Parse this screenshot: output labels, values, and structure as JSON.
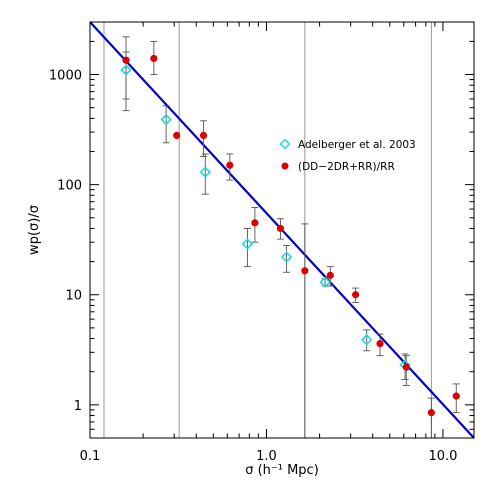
{
  "chart_data": {
    "type": "scatter",
    "xlabel": "σ (h⁻¹ Mpc)",
    "ylabel": "wp(σ)/σ",
    "xscale": "log",
    "yscale": "log",
    "xlim": [
      0.1,
      15
    ],
    "ylim": [
      0.5,
      3000
    ],
    "x_ticks": [
      {
        "value": 0.1,
        "label": "0.1"
      },
      {
        "value": 1,
        "label": "1.0"
      },
      {
        "value": 10,
        "label": "10.0"
      }
    ],
    "y_ticks": [
      {
        "value": 1,
        "label": "1"
      },
      {
        "value": 10,
        "label": "10"
      },
      {
        "value": 100,
        "label": "100"
      },
      {
        "value": 1000,
        "label": "1000"
      }
    ],
    "grid": false,
    "legend_position": "upper-right",
    "colors": {
      "adelberger": "#22d8d8",
      "ddrr": "#dd0000",
      "fit": "#0000cc",
      "errorbar": "#555555",
      "vline": "#999999"
    },
    "series": [
      {
        "name": "Adelberger et al. 2003",
        "marker": "diamond-open",
        "points": [
          {
            "x": 0.16,
            "y": 1100,
            "ylo": 470,
            "yhi": 1600
          },
          {
            "x": 0.27,
            "y": 390,
            "ylo": 240,
            "yhi": 520
          },
          {
            "x": 0.45,
            "y": 130,
            "ylo": 82,
            "yhi": 190
          },
          {
            "x": 0.78,
            "y": 29,
            "ylo": 18,
            "yhi": 40
          },
          {
            "x": 1.3,
            "y": 22,
            "ylo": 16,
            "yhi": 28
          },
          {
            "x": 2.15,
            "y": 13,
            "ylo": 12,
            "yhi": 14
          },
          {
            "x": 3.7,
            "y": 3.9,
            "ylo": 3.1,
            "yhi": 4.8
          },
          {
            "x": 6.1,
            "y": 2.3,
            "ylo": 1.7,
            "yhi": 2.9
          }
        ]
      },
      {
        "name": "(DD−2DR+RR)/RR",
        "marker": "circle-filled",
        "points": [
          {
            "x": 0.16,
            "y": 1350,
            "ylo": 600,
            "yhi": 2200
          },
          {
            "x": 0.23,
            "y": 1400,
            "ylo": 1000,
            "yhi": 2000
          },
          {
            "x": 0.31,
            "y": 280,
            "ylo": 280,
            "yhi": 280
          },
          {
            "x": 0.44,
            "y": 280,
            "ylo": 180,
            "yhi": 380
          },
          {
            "x": 0.62,
            "y": 150,
            "ylo": 110,
            "yhi": 190
          },
          {
            "x": 0.86,
            "y": 45,
            "ylo": 30,
            "yhi": 62
          },
          {
            "x": 1.2,
            "y": 40,
            "ylo": 32,
            "yhi": 49
          },
          {
            "x": 1.65,
            "y": 16.5,
            "ylo": 0.5,
            "yhi": 44
          },
          {
            "x": 2.3,
            "y": 15,
            "ylo": 12,
            "yhi": 18
          },
          {
            "x": 3.2,
            "y": 10,
            "ylo": 8.5,
            "yhi": 11.5
          },
          {
            "x": 4.4,
            "y": 3.6,
            "ylo": 2.8,
            "yhi": 4.4
          },
          {
            "x": 6.2,
            "y": 2.2,
            "ylo": 1.5,
            "yhi": 2.8
          },
          {
            "x": 8.6,
            "y": 0.85,
            "ylo": 0.5,
            "yhi": 1.15
          },
          {
            "x": 11.9,
            "y": 1.2,
            "ylo": 0.85,
            "yhi": 1.55
          }
        ]
      }
    ],
    "fit_line": {
      "x": [
        0.1,
        15
      ],
      "y": [
        3000,
        0.5
      ]
    },
    "vertical_lines": [
      0.12,
      0.32,
      1.65,
      8.6
    ]
  }
}
